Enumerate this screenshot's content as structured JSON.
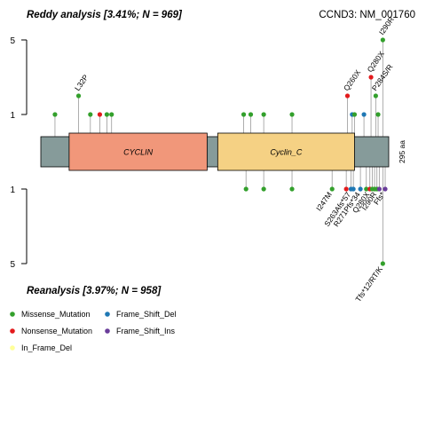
{
  "chart_data": {
    "type": "lollipop",
    "top_title": "Reddy analysis [3.41%; N = 969]",
    "bottom_title": "Reanalysis [3.97%; N = 958]",
    "gene_label": "CCND3: NM_001760",
    "protein_length_label": "295 aa",
    "protein_length": 295,
    "y_ticks_top": [
      "5",
      "1"
    ],
    "y_ticks_bottom": [
      "1",
      "5"
    ],
    "domains": [
      {
        "name": "CYCLIN",
        "start": 24,
        "end": 141,
        "color": "#F1977A"
      },
      {
        "name": "Cyclin_C",
        "start": 150,
        "end": 266,
        "color": "#F5D184"
      }
    ],
    "colors": {
      "Missense_Mutation": "#33A02C",
      "Nonsense_Mutation": "#E31A1C",
      "In_Frame_Del": "#FFFF99",
      "Frame_Shift_Del": "#1F78B4",
      "Frame_Shift_Ins": "#6A3D9A",
      "backbone": "#869B9A"
    },
    "top_mutations": [
      {
        "pos": 12,
        "count": 1,
        "type": "Missense_Mutation"
      },
      {
        "pos": 32,
        "count": 2,
        "type": "Missense_Mutation",
        "label": "L32P"
      },
      {
        "pos": 42,
        "count": 1,
        "type": "Missense_Mutation"
      },
      {
        "pos": 50,
        "count": 1,
        "type": "Nonsense_Mutation"
      },
      {
        "pos": 56,
        "count": 1,
        "type": "Missense_Mutation"
      },
      {
        "pos": 60,
        "count": 1,
        "type": "Missense_Mutation"
      },
      {
        "pos": 172,
        "count": 1,
        "type": "Missense_Mutation"
      },
      {
        "pos": 178,
        "count": 1,
        "type": "Missense_Mutation"
      },
      {
        "pos": 189,
        "count": 1,
        "type": "Missense_Mutation"
      },
      {
        "pos": 213,
        "count": 1,
        "type": "Missense_Mutation"
      },
      {
        "pos": 260,
        "count": 2,
        "type": "Nonsense_Mutation",
        "label": "Q260X"
      },
      {
        "pos": 264,
        "count": 1,
        "type": "Frame_Shift_Del"
      },
      {
        "pos": 266,
        "count": 1,
        "type": "Missense_Mutation"
      },
      {
        "pos": 274,
        "count": 1,
        "type": "Frame_Shift_Del"
      },
      {
        "pos": 280,
        "count": 3,
        "type": "Nonsense_Mutation",
        "label": "Q280X"
      },
      {
        "pos": 284,
        "count": 2,
        "type": "Missense_Mutation",
        "label": "P284S/R"
      },
      {
        "pos": 286,
        "count": 1,
        "type": "Missense_Mutation"
      },
      {
        "pos": 290,
        "count": 5,
        "type": "Missense_Mutation",
        "label": "I290R"
      }
    ],
    "bottom_mutations": [
      {
        "pos": 174,
        "count": 1,
        "type": "Missense_Mutation"
      },
      {
        "pos": 189,
        "count": 1,
        "type": "Missense_Mutation"
      },
      {
        "pos": 213,
        "count": 1,
        "type": "Missense_Mutation"
      },
      {
        "pos": 247,
        "count": 1,
        "type": "Missense_Mutation",
        "label": "I247M"
      },
      {
        "pos": 259,
        "count": 1,
        "type": "Nonsense_Mutation"
      },
      {
        "pos": 263,
        "count": 1,
        "type": "Frame_Shift_Del",
        "label": "S263Afs*57"
      },
      {
        "pos": 265,
        "count": 1,
        "type": "Frame_Shift_Del"
      },
      {
        "pos": 271,
        "count": 1,
        "type": "Frame_Shift_Del",
        "label": "R271Pfs*34"
      },
      {
        "pos": 276,
        "count": 1,
        "type": "Missense_Mutation"
      },
      {
        "pos": 279,
        "count": 1,
        "type": "Nonsense_Mutation",
        "label": "Q280X"
      },
      {
        "pos": 281,
        "count": 1,
        "type": "Missense_Mutation"
      },
      {
        "pos": 283,
        "count": 1,
        "type": "Missense_Mutation"
      },
      {
        "pos": 285,
        "count": 1,
        "type": "Missense_Mutation",
        "label": "I290R"
      },
      {
        "pos": 287,
        "count": 1,
        "type": "Frame_Shift_Ins"
      },
      {
        "pos": 290,
        "count": 5,
        "type": "Missense_Mutation",
        "label": "Tfs*12/RT/K"
      },
      {
        "pos": 292,
        "count": 1,
        "type": "Frame_Shift_Ins",
        "label": "Ffs*"
      }
    ],
    "legend": [
      {
        "label": "Missense_Mutation",
        "color": "#33A02C"
      },
      {
        "label": "Frame_Shift_Del",
        "color": "#1F78B4"
      },
      {
        "label": "Nonsense_Mutation",
        "color": "#E31A1C"
      },
      {
        "label": "Frame_Shift_Ins",
        "color": "#6A3D9A"
      },
      {
        "label": "In_Frame_Del",
        "color": "#FFFF99"
      }
    ]
  }
}
